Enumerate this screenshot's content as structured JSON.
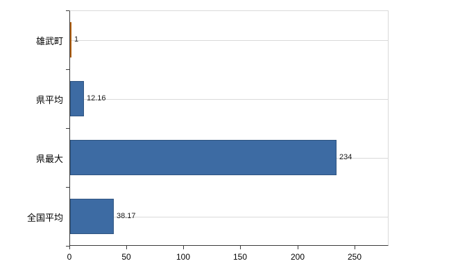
{
  "chart_data": {
    "type": "bar",
    "orientation": "horizontal",
    "title": "",
    "xlabel": "",
    "ylabel": "",
    "categories": [
      "雄武町",
      "県平均",
      "県最大",
      "全国平均"
    ],
    "values": [
      1,
      12.16,
      234,
      38.17
    ],
    "value_labels": [
      "1",
      "12.16",
      "234",
      "38.17"
    ],
    "bar_colors": [
      "#e8821e",
      "#3d6ba3",
      "#3d6ba3",
      "#3d6ba3"
    ],
    "bar_border_colors": [
      "#b05f0e",
      "#2f5480",
      "#2f5480",
      "#2f5480"
    ],
    "xlim": [
      0,
      280
    ],
    "x_ticks": [
      0,
      50,
      100,
      150,
      200,
      250
    ],
    "grid": true,
    "legend": false,
    "axis_color": "#3a3a3a",
    "grid_color": "#d9d9d9",
    "background": "#ffffff"
  }
}
